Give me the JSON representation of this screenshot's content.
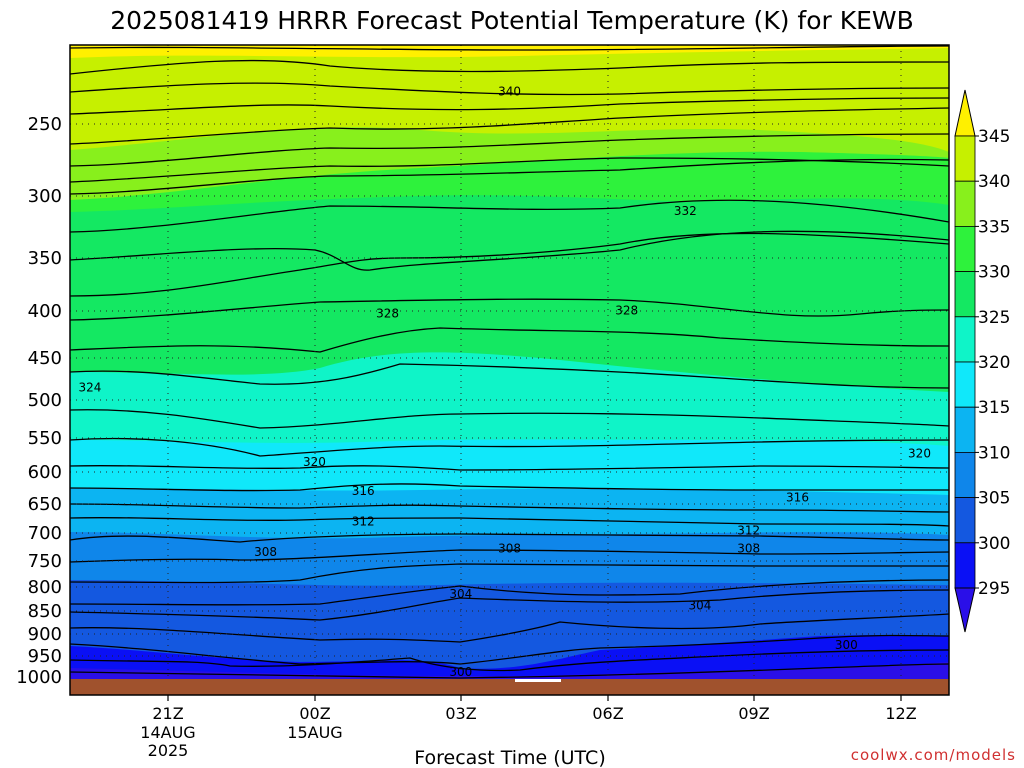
{
  "chart_data": {
    "type": "heatmap",
    "title": "2025081419 HRRR Forecast Potential Temperature (K) for KEWB",
    "xlabel": "Forecast Time (UTC)",
    "ylabel": "",
    "y_scale": "log",
    "y_inverted": true,
    "y_ticks": [
      "250",
      "300",
      "350",
      "400",
      "450",
      "500",
      "550",
      "600",
      "650",
      "700",
      "750",
      "800",
      "850",
      "900",
      "950",
      "1000"
    ],
    "x_ticks": [
      "21Z",
      "00Z",
      "03Z",
      "06Z",
      "09Z",
      "12Z"
    ],
    "x_tick_dates": [
      [
        "14AUG",
        "2025"
      ],
      [
        "15AUG"
      ],
      [],
      [],
      [],
      []
    ],
    "colorbar": {
      "labels": [
        "295",
        "300",
        "305",
        "310",
        "315",
        "320",
        "325",
        "330",
        "335",
        "340",
        "345"
      ],
      "colors": [
        "#2a0fe8",
        "#0a10f5",
        "#1458e0",
        "#0f86ea",
        "#0cb4f2",
        "#10e8fa",
        "#0ff4c8",
        "#14e862",
        "#2ef23c",
        "#88f01c",
        "#c6f000",
        "#fff000"
      ]
    },
    "contour_labels": [
      {
        "label": "340",
        "time": "21Z+7h",
        "pressure": 225
      },
      {
        "label": "332",
        "time": "21Z+10.6h",
        "pressure": 305
      },
      {
        "label": "328",
        "time": "21Z+4.5h",
        "pressure": 396
      },
      {
        "label": "328",
        "time": "21Z+9.4h",
        "pressure": 393
      },
      {
        "label": "324",
        "time": "21Z-1.6h",
        "pressure": 478
      },
      {
        "label": "320",
        "time": "21Z+3h",
        "pressure": 578
      },
      {
        "label": "320",
        "time": "21Z+15.4h",
        "pressure": 565
      },
      {
        "label": "316",
        "time": "21Z+4h",
        "pressure": 622
      },
      {
        "label": "316",
        "time": "21Z+12.9h",
        "pressure": 632
      },
      {
        "label": "312",
        "time": "21Z+4h",
        "pressure": 672
      },
      {
        "label": "312",
        "time": "21Z+11.9h",
        "pressure": 688
      },
      {
        "label": "308",
        "time": "21Z+2h",
        "pressure": 726
      },
      {
        "label": "308",
        "time": "21Z+7h",
        "pressure": 720
      },
      {
        "label": "308",
        "time": "21Z+11.9h",
        "pressure": 720
      },
      {
        "label": "304",
        "time": "21Z+6h",
        "pressure": 808
      },
      {
        "label": "304",
        "time": "21Z+10.9h",
        "pressure": 832
      },
      {
        "label": "300",
        "time": "21Z+13.9h",
        "pressure": 920
      },
      {
        "label": "300",
        "time": "21Z+6h",
        "pressure": 985
      }
    ]
  },
  "credit": "coolwx.com/models"
}
